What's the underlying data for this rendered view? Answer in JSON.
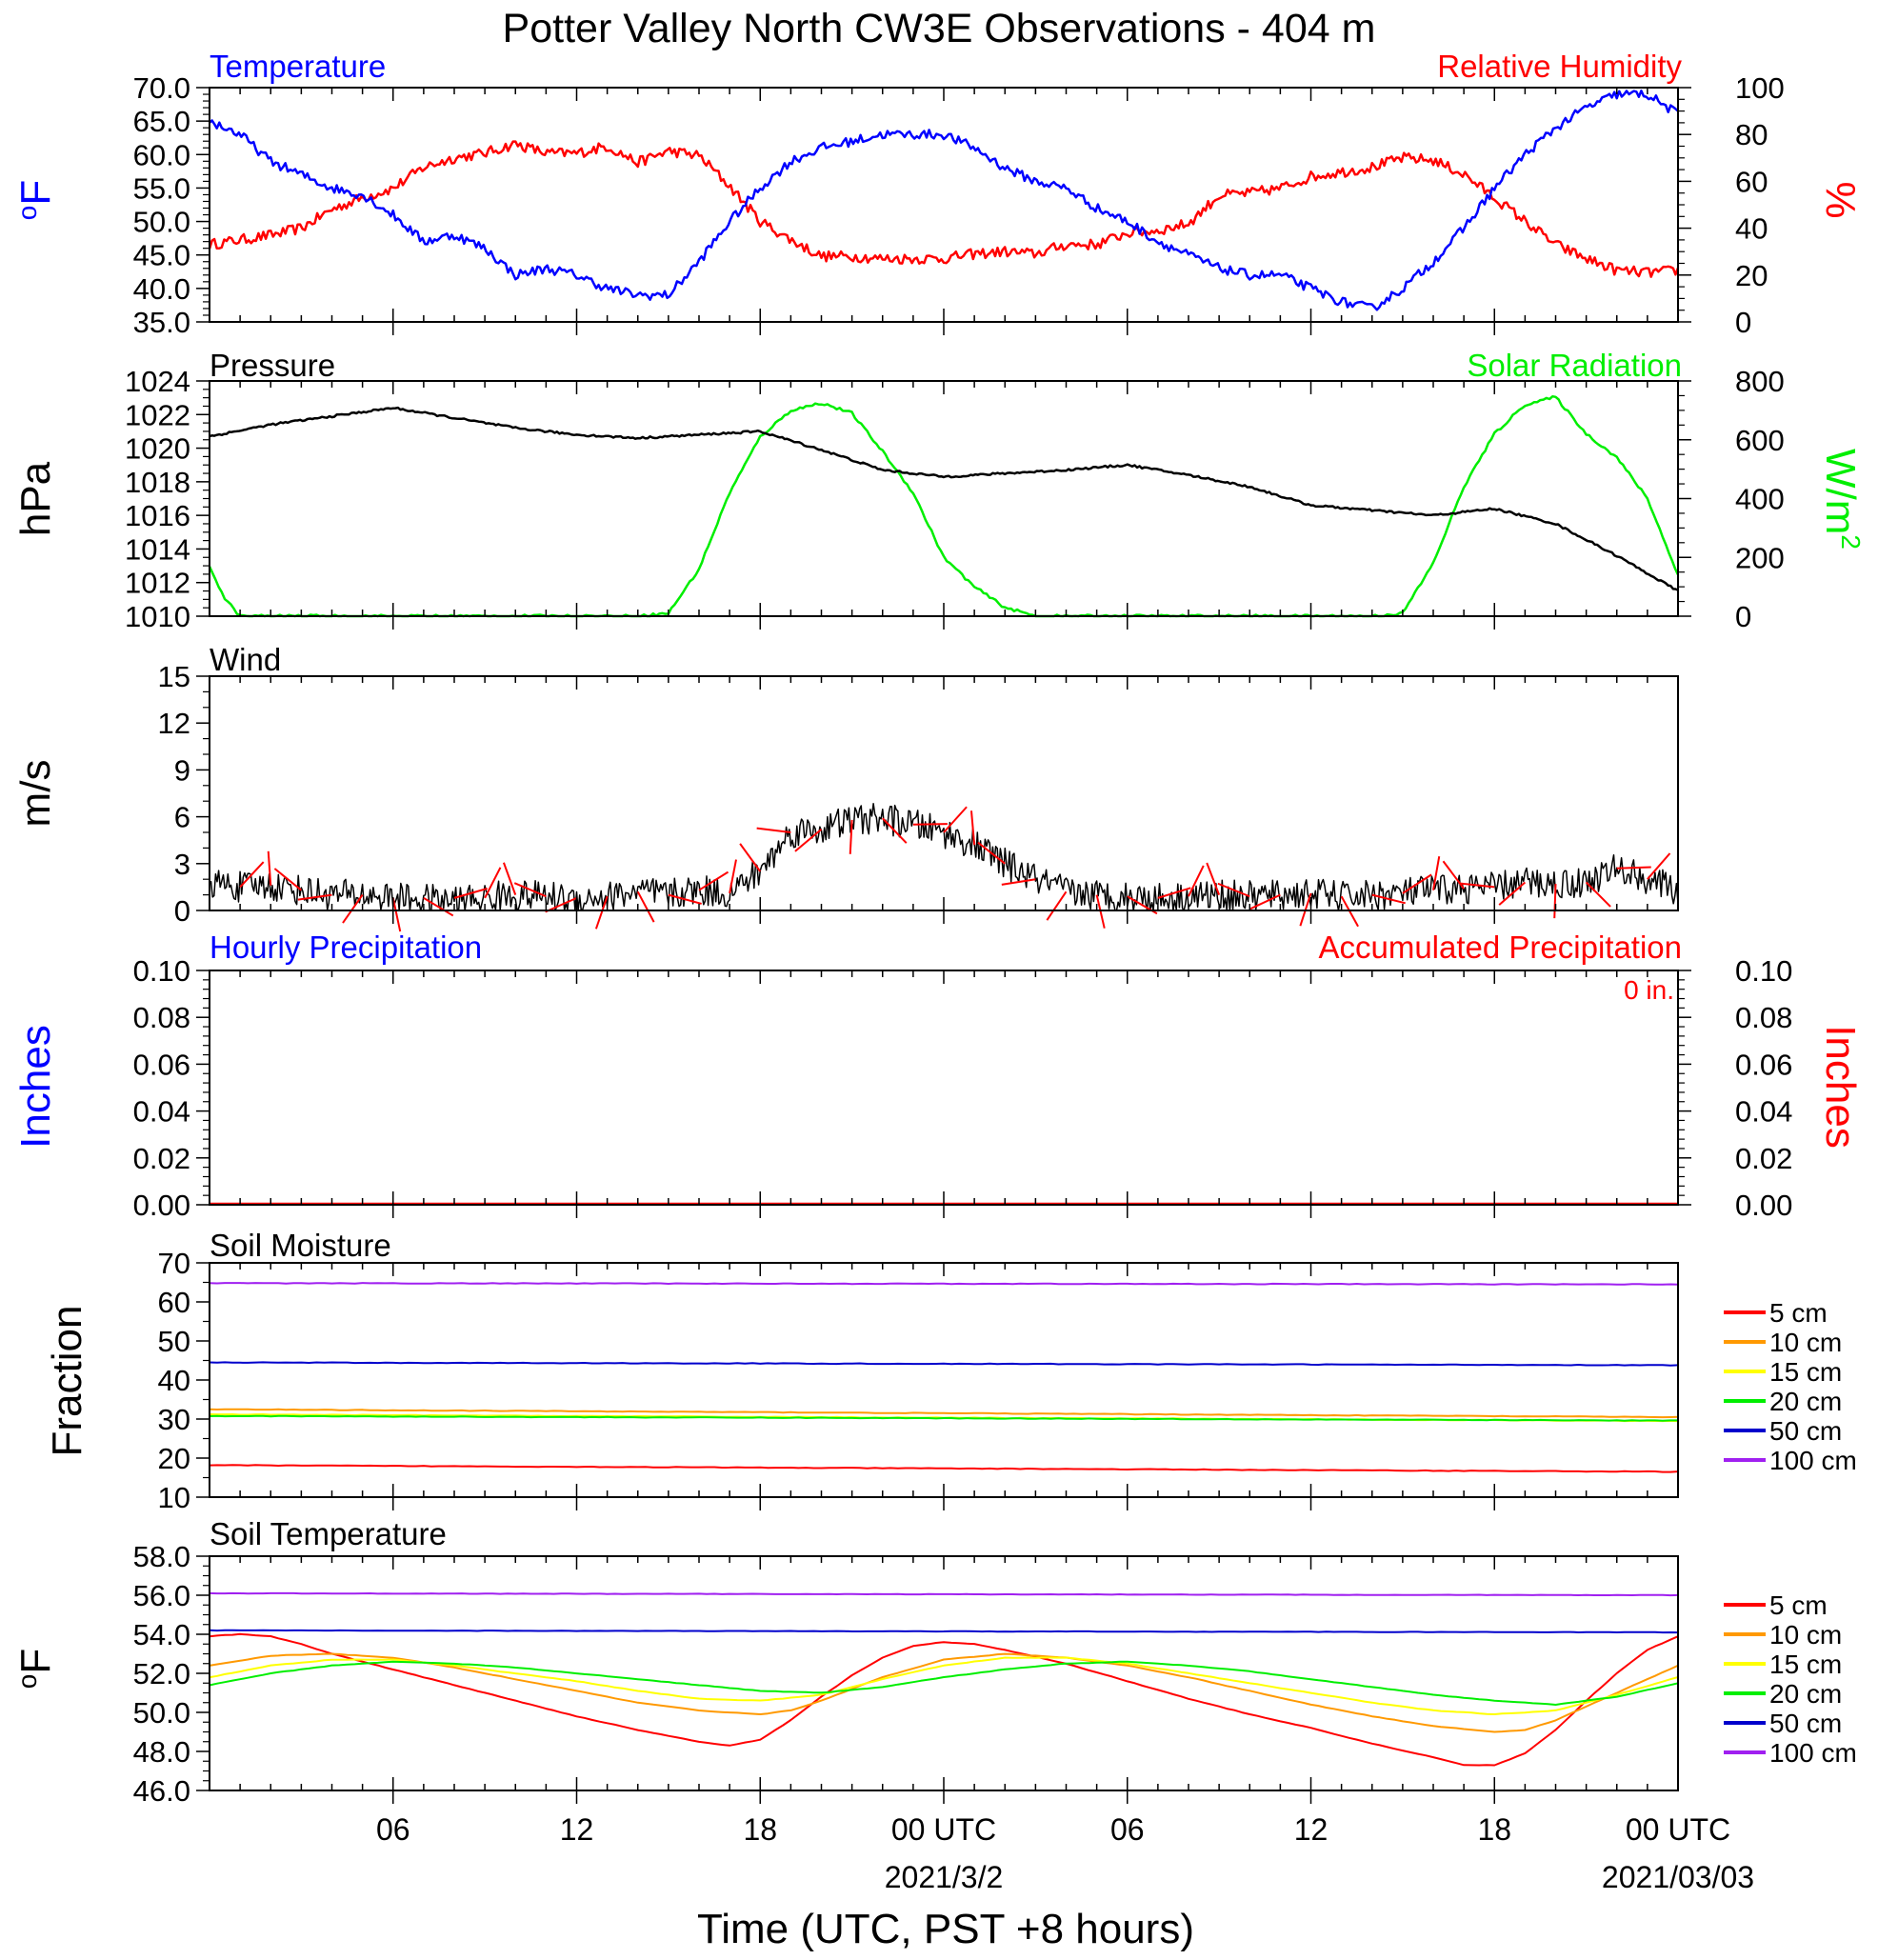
{
  "title": "Potter Valley North CW3E Observations - 404 m",
  "colors": {
    "blue": "#0000ff",
    "red": "#ff0000",
    "green": "#00ee00",
    "black": "#000000",
    "orange": "#ff9900",
    "yellow": "#ffff00",
    "darkblue": "#0000cc",
    "purple": "#a020f0"
  },
  "x_axis": {
    "title": "Time (UTC, PST +8 hours)",
    "range_hours": [
      0,
      48
    ],
    "ticks": [
      {
        "hour": 6,
        "label": "06"
      },
      {
        "hour": 12,
        "label": "12"
      },
      {
        "hour": 18,
        "label": "18"
      },
      {
        "hour": 24,
        "label": "00 UTC",
        "sub": "2021/3/2"
      },
      {
        "hour": 30,
        "label": "06"
      },
      {
        "hour": 36,
        "label": "12"
      },
      {
        "hour": 42,
        "label": "18"
      },
      {
        "hour": 48,
        "label": "00 UTC",
        "sub": "2021/03/03"
      }
    ]
  },
  "panels": {
    "temp_rh": {
      "left_label": "Temperature",
      "right_label": "Relative Humidity",
      "left_unit": "oF",
      "right_unit": "%",
      "left_ticks": [
        "70.0",
        "65.0",
        "60.0",
        "55.0",
        "50.0",
        "45.0",
        "40.0",
        "35.0"
      ],
      "right_ticks": [
        "100",
        "80",
        "60",
        "40",
        "20",
        "0"
      ]
    },
    "pressure_solar": {
      "left_label": "Pressure",
      "right_label": "Solar Radiation",
      "left_unit": "hPa",
      "right_unit": "W/m2",
      "left_ticks": [
        "1024",
        "1022",
        "1020",
        "1018",
        "1016",
        "1014",
        "1012",
        "1010"
      ],
      "right_ticks": [
        "800",
        "600",
        "400",
        "200",
        "0"
      ]
    },
    "wind": {
      "label": "Wind",
      "unit": "m/s",
      "ticks": [
        "15",
        "12",
        "9",
        "6",
        "3",
        "0"
      ]
    },
    "precip": {
      "left_label": "Hourly Precipitation",
      "right_label": "Accumulated Precipitation",
      "accum_text": "0 in.",
      "left_unit": "Inches",
      "right_unit": "Inches",
      "ticks": [
        "0.10",
        "0.08",
        "0.06",
        "0.04",
        "0.02",
        "0.00"
      ]
    },
    "soil_moisture": {
      "label": "Soil Moisture",
      "unit": "Fraction",
      "ticks": [
        "70",
        "60",
        "50",
        "40",
        "30",
        "20",
        "10"
      ]
    },
    "soil_temp": {
      "label": "Soil Temperature",
      "unit": "oF",
      "ticks": [
        "58.0",
        "56.0",
        "54.0",
        "52.0",
        "50.0",
        "48.0",
        "46.0"
      ]
    }
  },
  "legend": [
    "5 cm",
    "10 cm",
    "15 cm",
    "20 cm",
    "50 cm",
    "100 cm"
  ],
  "chart_data": [
    {
      "type": "line",
      "title": "Temperature / Relative Humidity",
      "x_unit": "hours",
      "ylim": [
        35,
        70
      ],
      "y2lim": [
        0,
        100
      ],
      "series": [
        {
          "name": "Temperature",
          "axis": "left",
          "x": [
            0,
            1,
            2,
            3,
            4,
            5,
            6,
            7,
            8,
            9,
            10,
            11,
            12,
            13,
            14,
            15,
            16,
            17,
            18,
            19,
            20,
            21,
            22,
            23,
            24,
            25,
            26,
            27,
            28,
            29,
            30,
            31,
            32,
            33,
            34,
            35,
            36,
            37,
            38,
            39,
            40,
            41,
            42,
            43,
            44,
            45,
            46,
            47,
            48
          ],
          "values": [
            65,
            63,
            59,
            57,
            55,
            54,
            51,
            47,
            48,
            46,
            42,
            43,
            42,
            40,
            39,
            39,
            44,
            50,
            55,
            59,
            61,
            62,
            63,
            63,
            63,
            61,
            58,
            56,
            55,
            52,
            50,
            47,
            45,
            43,
            42,
            42,
            40,
            38,
            37,
            40,
            44,
            49,
            55,
            60,
            64,
            67,
            69,
            69,
            66
          ]
        },
        {
          "name": "Relative Humidity",
          "axis": "right",
          "x": [
            0,
            1,
            2,
            3,
            4,
            5,
            6,
            7,
            8,
            9,
            10,
            11,
            12,
            13,
            14,
            15,
            16,
            17,
            18,
            19,
            20,
            21,
            22,
            23,
            24,
            25,
            26,
            27,
            28,
            29,
            30,
            31,
            32,
            33,
            34,
            35,
            36,
            37,
            38,
            39,
            40,
            41,
            42,
            43,
            44,
            45,
            46,
            47,
            48
          ],
          "values": [
            33,
            35,
            37,
            40,
            48,
            53,
            57,
            66,
            70,
            72,
            76,
            72,
            72,
            75,
            68,
            73,
            71,
            58,
            43,
            35,
            28,
            28,
            27,
            27,
            27,
            29,
            30,
            29,
            33,
            33,
            38,
            39,
            42,
            54,
            55,
            57,
            62,
            64,
            66,
            70,
            69,
            63,
            53,
            43,
            33,
            27,
            22,
            21,
            22
          ]
        }
      ]
    },
    {
      "type": "line",
      "title": "Pressure / Solar Radiation",
      "x_unit": "hours",
      "ylim": [
        1010,
        1024
      ],
      "y2lim": [
        0,
        800
      ],
      "series": [
        {
          "name": "Pressure",
          "axis": "left",
          "x": [
            0,
            2,
            4,
            6,
            8,
            10,
            12,
            14,
            16,
            18,
            20,
            22,
            24,
            26,
            28,
            30,
            32,
            34,
            36,
            38,
            40,
            42,
            44,
            46,
            48
          ],
          "values": [
            1020.7,
            1021.4,
            1021.9,
            1022.4,
            1021.8,
            1021.2,
            1020.8,
            1020.6,
            1020.8,
            1021.0,
            1019.9,
            1018.7,
            1018.3,
            1018.5,
            1018.7,
            1019.0,
            1018.4,
            1017.7,
            1016.6,
            1016.3,
            1016.0,
            1016.4,
            1015.5,
            1013.6,
            1011.5
          ]
        },
        {
          "name": "Solar Radiation",
          "axis": "right",
          "x": [
            0,
            0.5,
            1,
            14,
            15,
            16,
            17,
            18,
            19,
            20,
            21,
            22,
            23,
            24,
            25,
            26,
            27,
            38,
            39,
            40,
            41,
            42,
            43,
            44,
            45,
            46,
            47,
            48
          ],
          "values": [
            170,
            60,
            0,
            0,
            10,
            160,
            420,
            610,
            700,
            725,
            690,
            560,
            420,
            200,
            100,
            30,
            0,
            0,
            10,
            180,
            440,
            620,
            720,
            745,
            620,
            540,
            400,
            140
          ]
        }
      ]
    },
    {
      "type": "line",
      "title": "Wind",
      "x_unit": "hours",
      "ylim": [
        0,
        15
      ],
      "series": [
        {
          "name": "Wind",
          "x": [
            0,
            1,
            2,
            3,
            4,
            5,
            6,
            7,
            8,
            9,
            10,
            11,
            12,
            13,
            14,
            15,
            16,
            17,
            18,
            19,
            20,
            21,
            22,
            23,
            24,
            25,
            26,
            27,
            28,
            29,
            30,
            31,
            32,
            33,
            34,
            35,
            36,
            37,
            38,
            39,
            40,
            41,
            42,
            43,
            44,
            45,
            46,
            47,
            48
          ],
          "values": [
            1.8,
            1.5,
            1.6,
            1.3,
            1.0,
            1.0,
            0.8,
            0.7,
            0.6,
            0.8,
            1.0,
            0.9,
            0.7,
            0.9,
            1.2,
            1.0,
            1.3,
            1.1,
            2.5,
            5.0,
            5.2,
            5.8,
            5.9,
            5.5,
            5.0,
            4.2,
            3.0,
            2.0,
            1.2,
            1.0,
            0.9,
            0.8,
            0.9,
            1.0,
            0.9,
            1.0,
            1.1,
            0.9,
            1.0,
            1.1,
            1.3,
            1.4,
            1.5,
            1.8,
            1.7,
            1.8,
            2.7,
            2.0,
            1.2
          ]
        }
      ]
    },
    {
      "type": "bar",
      "title": "Precipitation",
      "ylim": [
        0,
        0.1
      ],
      "series": [
        {
          "name": "Hourly Precipitation",
          "values": [
            0
          ]
        },
        {
          "name": "Accumulated Precipitation",
          "values": [
            0
          ]
        }
      ]
    },
    {
      "type": "line",
      "title": "Soil Moisture",
      "x_unit": "hours",
      "ylim": [
        10,
        70
      ],
      "series": [
        {
          "name": "5 cm",
          "x": [
            0,
            48
          ],
          "values": [
            18.2,
            16.5
          ]
        },
        {
          "name": "10 cm",
          "x": [
            0,
            48
          ],
          "values": [
            32.5,
            30.5
          ]
        },
        {
          "name": "15 cm",
          "x": [
            0,
            48
          ],
          "values": [
            31.2,
            29.5
          ]
        },
        {
          "name": "20 cm",
          "x": [
            0,
            48
          ],
          "values": [
            30.8,
            29.6
          ]
        },
        {
          "name": "50 cm",
          "x": [
            0,
            48
          ],
          "values": [
            44.5,
            43.8
          ]
        },
        {
          "name": "100 cm",
          "x": [
            0,
            48
          ],
          "values": [
            64.8,
            64.5
          ]
        }
      ]
    },
    {
      "type": "line",
      "title": "Soil Temperature",
      "x_unit": "hours",
      "ylim": [
        46,
        58
      ],
      "series": [
        {
          "name": "5 cm",
          "x": [
            0,
            1,
            2,
            3,
            4,
            5,
            6,
            8,
            10,
            12,
            14,
            16,
            17,
            18,
            19,
            20,
            21,
            22,
            23,
            24,
            25,
            26,
            28,
            30,
            32,
            34,
            36,
            38,
            40,
            41,
            42,
            43,
            44,
            45,
            46,
            47,
            48
          ],
          "values": [
            53.9,
            54.0,
            53.9,
            53.5,
            53.0,
            52.6,
            52.2,
            51.4,
            50.6,
            49.8,
            49.1,
            48.5,
            48.3,
            48.6,
            49.6,
            50.8,
            51.9,
            52.8,
            53.4,
            53.6,
            53.5,
            53.2,
            52.5,
            51.6,
            50.7,
            49.9,
            49.2,
            48.4,
            47.7,
            47.3,
            47.3,
            47.9,
            49.1,
            50.6,
            52.0,
            53.2,
            53.9
          ]
        },
        {
          "name": "10 cm",
          "x": [
            0,
            2,
            4,
            6,
            8,
            10,
            12,
            14,
            16,
            18,
            19,
            20,
            22,
            24,
            26,
            28,
            30,
            32,
            34,
            36,
            38,
            40,
            42,
            43,
            44,
            46,
            48
          ],
          "values": [
            52.4,
            52.9,
            53.0,
            52.8,
            52.3,
            51.7,
            51.1,
            50.5,
            50.1,
            49.9,
            50.1,
            50.6,
            51.8,
            52.7,
            53.0,
            52.8,
            52.4,
            51.8,
            51.1,
            50.4,
            49.8,
            49.3,
            49.0,
            49.1,
            49.6,
            51.0,
            52.4
          ]
        },
        {
          "name": "15 cm",
          "x": [
            0,
            2,
            4,
            6,
            8,
            10,
            12,
            14,
            16,
            18,
            20,
            22,
            24,
            26,
            28,
            30,
            32,
            34,
            36,
            38,
            40,
            42,
            44,
            46,
            48
          ],
          "values": [
            51.8,
            52.4,
            52.7,
            52.7,
            52.4,
            52.0,
            51.6,
            51.1,
            50.7,
            50.6,
            50.9,
            51.7,
            52.4,
            52.8,
            52.8,
            52.5,
            52.0,
            51.5,
            51.0,
            50.5,
            50.1,
            49.9,
            50.1,
            50.9,
            51.8
          ]
        },
        {
          "name": "20 cm",
          "x": [
            0,
            2,
            4,
            6,
            8,
            10,
            12,
            14,
            16,
            18,
            20,
            22,
            24,
            26,
            28,
            30,
            32,
            34,
            36,
            38,
            40,
            42,
            44,
            46,
            48
          ],
          "values": [
            51.4,
            52.0,
            52.4,
            52.6,
            52.5,
            52.3,
            52.0,
            51.7,
            51.4,
            51.1,
            51.0,
            51.3,
            51.8,
            52.2,
            52.5,
            52.6,
            52.4,
            52.1,
            51.7,
            51.3,
            50.9,
            50.6,
            50.4,
            50.8,
            51.5
          ]
        },
        {
          "name": "50 cm",
          "x": [
            0,
            48
          ],
          "values": [
            54.2,
            54.1
          ]
        },
        {
          "name": "100 cm",
          "x": [
            0,
            48
          ],
          "values": [
            56.1,
            56.0
          ]
        }
      ]
    }
  ]
}
